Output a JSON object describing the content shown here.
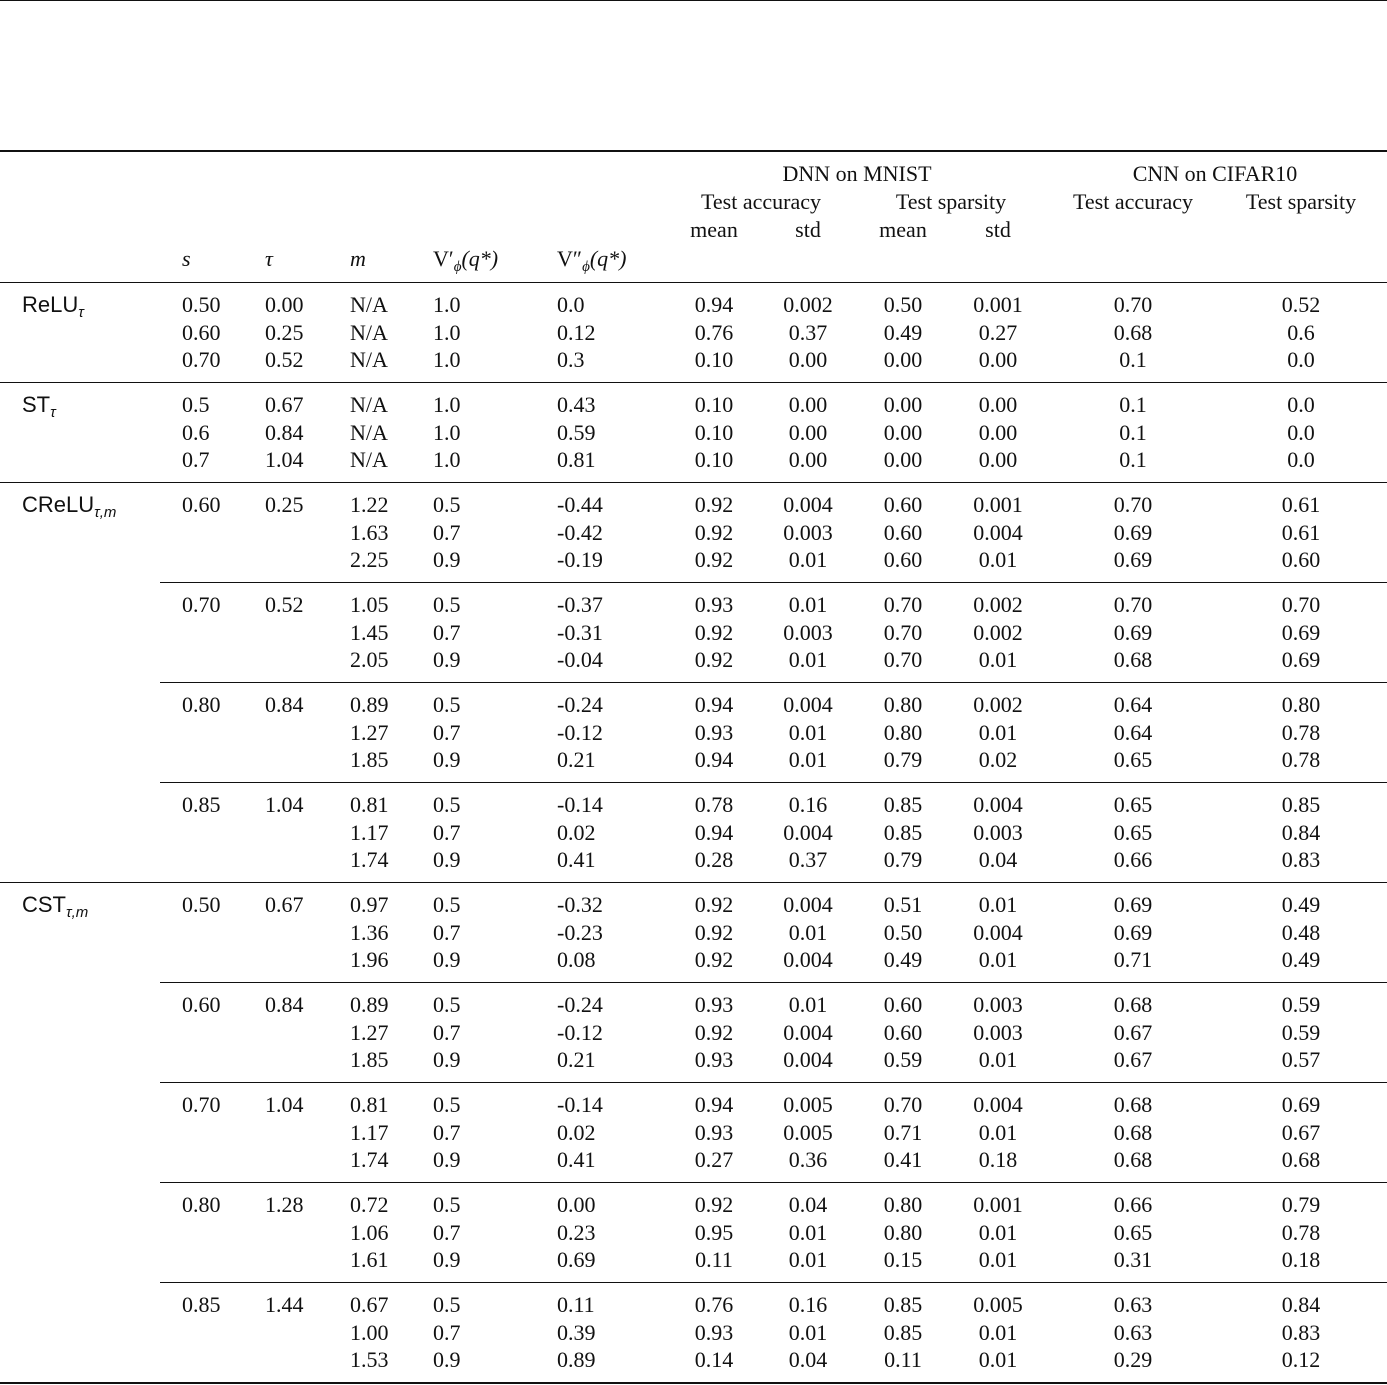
{
  "header": {
    "dnn": "DNN on MNIST",
    "cnn": "CNN on CIFAR10",
    "metrics": [
      "Test accuracy",
      "Test sparsity",
      "Test accuracy",
      "Test sparsity"
    ],
    "stats": [
      "mean",
      "std",
      "mean",
      "std"
    ],
    "columns": [
      {
        "text": "s"
      },
      {
        "text": "τ"
      },
      {
        "text": "m"
      },
      {
        "text": "V′",
        "sub": "ϕ",
        "tail": "(q*)"
      },
      {
        "text": "V″",
        "sub": "ϕ",
        "tail": "(q*)"
      }
    ]
  },
  "groups": [
    {
      "label": {
        "text": "ReLU",
        "sub": "τ"
      },
      "blocks": [
        {
          "rows": [
            [
              "0.50",
              "0.00",
              "N/A",
              "1.0",
              "0.0",
              "0.94",
              "0.002",
              "0.50",
              "0.001",
              "0.70",
              "0.52"
            ],
            [
              "0.60",
              "0.25",
              "N/A",
              "1.0",
              "0.12",
              "0.76",
              "0.37",
              "0.49",
              "0.27",
              "0.68",
              "0.6"
            ],
            [
              "0.70",
              "0.52",
              "N/A",
              "1.0",
              "0.3",
              "0.10",
              "0.00",
              "0.00",
              "0.00",
              "0.1",
              "0.0"
            ]
          ]
        }
      ]
    },
    {
      "label": {
        "text": "ST",
        "sub": "τ"
      },
      "blocks": [
        {
          "rows": [
            [
              "0.5",
              "0.67",
              "N/A",
              "1.0",
              "0.43",
              "0.10",
              "0.00",
              "0.00",
              "0.00",
              "0.1",
              "0.0"
            ],
            [
              "0.6",
              "0.84",
              "N/A",
              "1.0",
              "0.59",
              "0.10",
              "0.00",
              "0.00",
              "0.00",
              "0.1",
              "0.0"
            ],
            [
              "0.7",
              "1.04",
              "N/A",
              "1.0",
              "0.81",
              "0.10",
              "0.00",
              "0.00",
              "0.00",
              "0.1",
              "0.0"
            ]
          ]
        }
      ]
    },
    {
      "label": {
        "text": "CReLU",
        "sub": "τ,m"
      },
      "blocks": [
        {
          "rows": [
            [
              "0.60",
              "0.25",
              "1.22",
              "0.5",
              "-0.44",
              "0.92",
              "0.004",
              "0.60",
              "0.001",
              "0.70",
              "0.61"
            ],
            [
              "1.63",
              "0.7",
              "-0.42",
              "0.92",
              "0.003",
              "0.60",
              "0.004",
              "0.69",
              "0.61"
            ],
            [
              "2.25",
              "0.9",
              "-0.19",
              "0.92",
              "0.01",
              "0.60",
              "0.01",
              "0.69",
              "0.60"
            ]
          ]
        },
        {
          "rows": [
            [
              "0.70",
              "0.52",
              "1.05",
              "0.5",
              "-0.37",
              "0.93",
              "0.01",
              "0.70",
              "0.002",
              "0.70",
              "0.70"
            ],
            [
              "1.45",
              "0.7",
              "-0.31",
              "0.92",
              "0.003",
              "0.70",
              "0.002",
              "0.69",
              "0.69"
            ],
            [
              "2.05",
              "0.9",
              "-0.04",
              "0.92",
              "0.01",
              "0.70",
              "0.01",
              "0.68",
              "0.69"
            ]
          ]
        },
        {
          "rows": [
            [
              "0.80",
              "0.84",
              "0.89",
              "0.5",
              "-0.24",
              "0.94",
              "0.004",
              "0.80",
              "0.002",
              "0.64",
              "0.80"
            ],
            [
              "1.27",
              "0.7",
              "-0.12",
              "0.93",
              "0.01",
              "0.80",
              "0.01",
              "0.64",
              "0.78"
            ],
            [
              "1.85",
              "0.9",
              "0.21",
              "0.94",
              "0.01",
              "0.79",
              "0.02",
              "0.65",
              "0.78"
            ]
          ]
        },
        {
          "rows": [
            [
              "0.85",
              "1.04",
              "0.81",
              "0.5",
              "-0.14",
              "0.78",
              "0.16",
              "0.85",
              "0.004",
              "0.65",
              "0.85"
            ],
            [
              "1.17",
              "0.7",
              "0.02",
              "0.94",
              "0.004",
              "0.85",
              "0.003",
              "0.65",
              "0.84"
            ],
            [
              "1.74",
              "0.9",
              "0.41",
              "0.28",
              "0.37",
              "0.79",
              "0.04",
              "0.66",
              "0.83"
            ]
          ]
        }
      ]
    },
    {
      "label": {
        "text": "CST",
        "sub": "τ,m"
      },
      "blocks": [
        {
          "rows": [
            [
              "0.50",
              "0.67",
              "0.97",
              "0.5",
              "-0.32",
              "0.92",
              "0.004",
              "0.51",
              "0.01",
              "0.69",
              "0.49"
            ],
            [
              "1.36",
              "0.7",
              "-0.23",
              "0.92",
              "0.01",
              "0.50",
              "0.004",
              "0.69",
              "0.48"
            ],
            [
              "1.96",
              "0.9",
              "0.08",
              "0.92",
              "0.004",
              "0.49",
              "0.01",
              "0.71",
              "0.49"
            ]
          ]
        },
        {
          "rows": [
            [
              "0.60",
              "0.84",
              "0.89",
              "0.5",
              "-0.24",
              "0.93",
              "0.01",
              "0.60",
              "0.003",
              "0.68",
              "0.59"
            ],
            [
              "1.27",
              "0.7",
              "-0.12",
              "0.92",
              "0.004",
              "0.60",
              "0.003",
              "0.67",
              "0.59"
            ],
            [
              "1.85",
              "0.9",
              "0.21",
              "0.93",
              "0.004",
              "0.59",
              "0.01",
              "0.67",
              "0.57"
            ]
          ]
        },
        {
          "rows": [
            [
              "0.70",
              "1.04",
              "0.81",
              "0.5",
              "-0.14",
              "0.94",
              "0.005",
              "0.70",
              "0.004",
              "0.68",
              "0.69"
            ],
            [
              "1.17",
              "0.7",
              "0.02",
              "0.93",
              "0.005",
              "0.71",
              "0.01",
              "0.68",
              "0.67"
            ],
            [
              "1.74",
              "0.9",
              "0.41",
              "0.27",
              "0.36",
              "0.41",
              "0.18",
              "0.68",
              "0.68"
            ]
          ]
        },
        {
          "rows": [
            [
              "0.80",
              "1.28",
              "0.72",
              "0.5",
              "0.00",
              "0.92",
              "0.04",
              "0.80",
              "0.001",
              "0.66",
              "0.79"
            ],
            [
              "1.06",
              "0.7",
              "0.23",
              "0.95",
              "0.01",
              "0.80",
              "0.01",
              "0.65",
              "0.78"
            ],
            [
              "1.61",
              "0.9",
              "0.69",
              "0.11",
              "0.01",
              "0.15",
              "0.01",
              "0.31",
              "0.18"
            ]
          ]
        },
        {
          "rows": [
            [
              "0.85",
              "1.44",
              "0.67",
              "0.5",
              "0.11",
              "0.76",
              "0.16",
              "0.85",
              "0.005",
              "0.63",
              "0.84"
            ],
            [
              "1.00",
              "0.7",
              "0.39",
              "0.93",
              "0.01",
              "0.85",
              "0.01",
              "0.63",
              "0.83"
            ],
            [
              "1.53",
              "0.9",
              "0.89",
              "0.14",
              "0.04",
              "0.11",
              "0.01",
              "0.29",
              "0.12"
            ]
          ]
        }
      ]
    }
  ]
}
